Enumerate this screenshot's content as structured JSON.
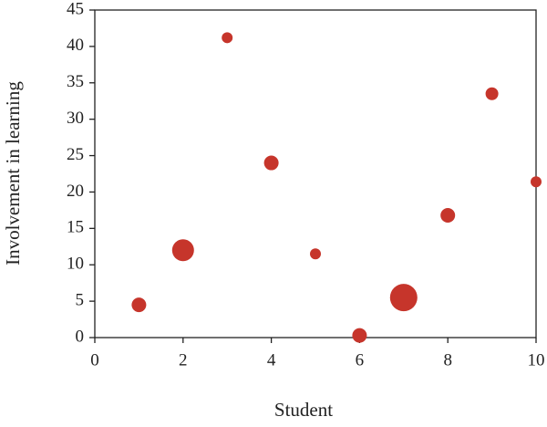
{
  "chart_data": {
    "type": "scatter",
    "x_label": "Student",
    "y_label": "Involvement in learning",
    "x": [
      1,
      2,
      3,
      4,
      5,
      6,
      7,
      8,
      9,
      10
    ],
    "series": [
      {
        "color": "#c6352b",
        "values": [
          4.5,
          12,
          41.2,
          24,
          11.5,
          0.3,
          5.5,
          16.8,
          33.5,
          21.4
        ],
        "sizes": [
          8,
          12,
          6,
          8,
          6,
          8,
          15,
          8,
          7,
          6
        ]
      }
    ],
    "xlim": [
      0,
      10
    ],
    "xticks": [
      0,
      2,
      4,
      6,
      8,
      10
    ],
    "ylim": [
      0,
      45
    ],
    "yticks": [
      0,
      5,
      10,
      15,
      20,
      25,
      30,
      35,
      40,
      45
    ],
    "grid": false
  }
}
